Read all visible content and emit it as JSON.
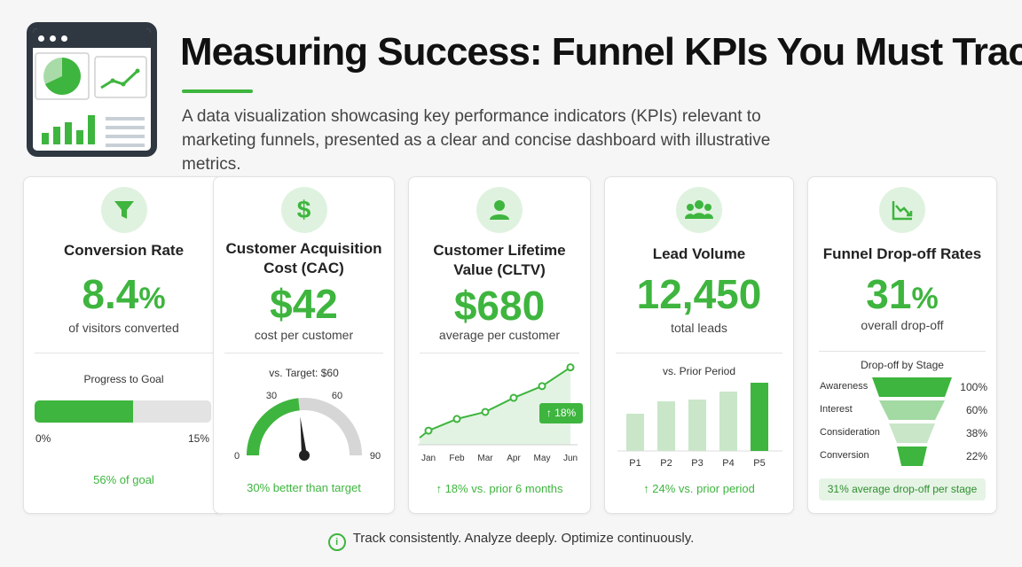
{
  "header": {
    "title": "Measuring Success: Funnel KPIs You Must Track",
    "subtitle": "A data visualization showcasing key performance indicators (KPIs) relevant to marketing funnels, presented as a clear and concise dashboard with illustrative metrics."
  },
  "colors": {
    "accent": "#3eb53e",
    "light_accent": "#c9e6c9",
    "icon_bg": "#dff2df",
    "gauge_gray": "#d6d6d6"
  },
  "cards": {
    "conversion": {
      "icon": "funnel-icon",
      "title": "Conversion Rate",
      "value": "8.4",
      "unit": "%",
      "caption": "of visitors converted",
      "progress_label": "Progress to Goal",
      "min_label": "0%",
      "max_label": "15%",
      "footer": "56% of goal"
    },
    "cac": {
      "icon": "dollar-icon",
      "title_line1": "Customer Acquisition",
      "title_line2": "Cost (CAC)",
      "value": "$42",
      "caption": "cost per customer",
      "target_label": "vs. Target: $60",
      "footer": "30% better than target"
    },
    "cltv": {
      "icon": "user-icon",
      "title_line1": "Customer Lifetime",
      "title_line2": "Value (CLTV)",
      "value": "$680",
      "caption": "average per customer",
      "badge": "↑ 18%",
      "footer": "↑ 18% vs. prior 6 months"
    },
    "leads": {
      "icon": "users-icon",
      "title": "Lead Volume",
      "value": "12,450",
      "caption": "total leads",
      "chart_label": "vs. Prior Period",
      "footer": "↑ 24%  vs. prior period"
    },
    "dropoff": {
      "icon": "trend-down-icon",
      "title": "Funnel Drop-off Rates",
      "value": "31",
      "unit": "%",
      "caption": "overall drop-off",
      "chart_label": "Drop-off by Stage",
      "footer": "31% average drop-off per stage"
    }
  },
  "footer": {
    "text": "Track consistently. Analyze deeply. Optimize continuously."
  },
  "chart_data": [
    {
      "type": "bar",
      "name": "progress_to_goal",
      "value": 8.4,
      "min": 0,
      "max": 15,
      "tick_labels": [
        "0%",
        "15%"
      ]
    },
    {
      "type": "gauge",
      "name": "cac_vs_target",
      "value": 42,
      "min": 0,
      "max": 90,
      "target": 60,
      "tick_labels": [
        "0",
        "30",
        "60",
        "90"
      ]
    },
    {
      "type": "line",
      "name": "cltv_trend",
      "categories": [
        "Jan",
        "Feb",
        "Mar",
        "Apr",
        "May",
        "Jun"
      ],
      "values": [
        1.0,
        1.5,
        1.8,
        2.4,
        2.9,
        3.7
      ]
    },
    {
      "type": "bar",
      "name": "lead_volume_periods",
      "categories": [
        "P1",
        "P2",
        "P3",
        "P4",
        "P5"
      ],
      "values": [
        42,
        56,
        58,
        67,
        77
      ],
      "highlight": "P5"
    },
    {
      "type": "bar",
      "name": "dropoff_by_stage",
      "categories": [
        "Awareness",
        "Interest",
        "Consideration",
        "Conversion"
      ],
      "values": [
        100,
        60,
        38,
        22
      ],
      "value_labels": [
        "100%",
        "60%",
        "38%",
        "22%"
      ]
    }
  ]
}
